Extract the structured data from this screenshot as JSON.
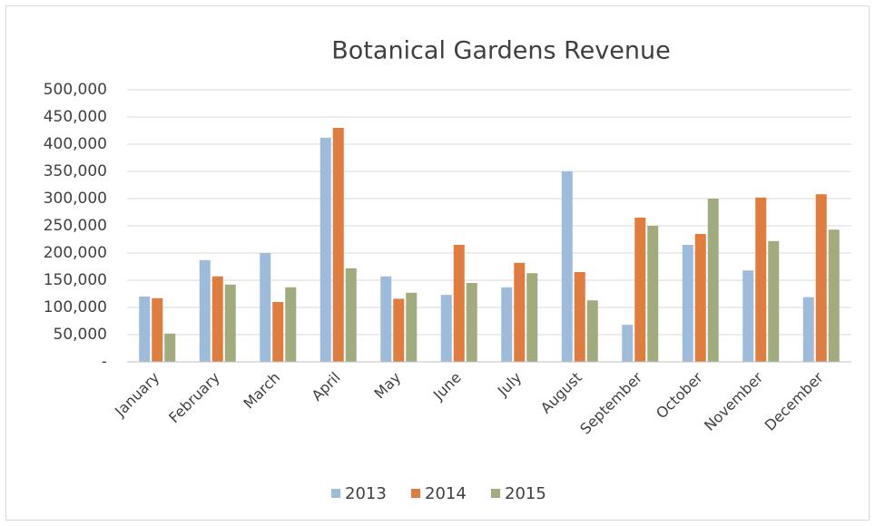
{
  "chart_data": {
    "type": "bar",
    "title": "Botanical Gardens Revenue",
    "categories": [
      "January",
      "February",
      "March",
      "April",
      "May",
      "June",
      "July",
      "August",
      "September",
      "October",
      "November",
      "December"
    ],
    "series": [
      {
        "name": "2013",
        "color": "#9dbcdb",
        "values": [
          120000,
          187000,
          200000,
          412000,
          157000,
          123000,
          137000,
          350000,
          68000,
          215000,
          168000,
          119000
        ]
      },
      {
        "name": "2014",
        "color": "#e07c3e",
        "values": [
          117000,
          157000,
          110000,
          430000,
          116000,
          215000,
          182000,
          165000,
          265000,
          235000,
          302000,
          308000
        ]
      },
      {
        "name": "2015",
        "color": "#a0ab7e",
        "values": [
          52000,
          142000,
          137000,
          172000,
          127000,
          145000,
          163000,
          113000,
          250000,
          300000,
          222000,
          243000
        ]
      }
    ],
    "ylim": [
      0,
      500000
    ],
    "yticks": [
      {
        "value": 0,
        "label": "-"
      },
      {
        "value": 50000,
        "label": "50,000"
      },
      {
        "value": 100000,
        "label": "100,000"
      },
      {
        "value": 150000,
        "label": "150,000"
      },
      {
        "value": 200000,
        "label": "200,000"
      },
      {
        "value": 250000,
        "label": "250,000"
      },
      {
        "value": 300000,
        "label": "300,000"
      },
      {
        "value": 350000,
        "label": "350,000"
      },
      {
        "value": 400000,
        "label": "400,000"
      },
      {
        "value": 450000,
        "label": "450,000"
      },
      {
        "value": 500000,
        "label": "500,000"
      }
    ],
    "grid": true,
    "legend": "bottom"
  }
}
